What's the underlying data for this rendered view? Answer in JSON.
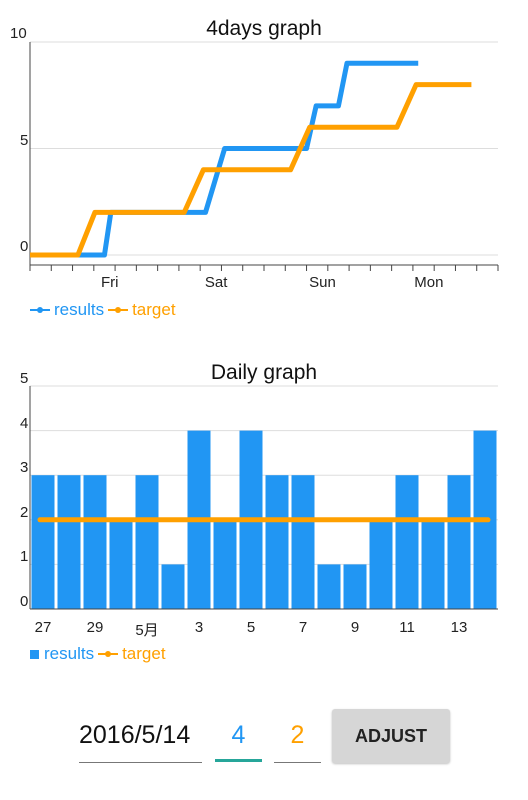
{
  "colors": {
    "results": "#2196f3",
    "target": "#ffa000",
    "grid": "#dddddd",
    "axis": "#444444"
  },
  "chart_data": [
    {
      "type": "line",
      "title": "4days graph",
      "ylim": [
        0,
        10
      ],
      "y_ticks": [
        "0",
        "5",
        "10"
      ],
      "x_ticks": [
        "Fri",
        "Sat",
        "Sun",
        "Mon"
      ],
      "xlim": [
        0,
        4.4
      ],
      "series": [
        {
          "name": "results",
          "color": "#2196f3",
          "points": [
            [
              0.0,
              0
            ],
            [
              0.7,
              0
            ],
            [
              0.76,
              2
            ],
            [
              1.65,
              2
            ],
            [
              1.83,
              5
            ],
            [
              2.6,
              5
            ],
            [
              2.69,
              7
            ],
            [
              2.9,
              7
            ],
            [
              2.98,
              9
            ],
            [
              3.65,
              9
            ]
          ]
        },
        {
          "name": "target",
          "color": "#ffa000",
          "points": [
            [
              0.0,
              0
            ],
            [
              0.45,
              0
            ],
            [
              0.61,
              2
            ],
            [
              1.45,
              2
            ],
            [
              1.63,
              4
            ],
            [
              2.45,
              4
            ],
            [
              2.63,
              6
            ],
            [
              3.45,
              6
            ],
            [
              3.63,
              8
            ],
            [
              4.15,
              8
            ]
          ]
        }
      ],
      "legend": "bottom-left",
      "grid": true
    },
    {
      "type": "bar",
      "title": "Daily graph",
      "ylim": [
        0,
        5
      ],
      "y_ticks": [
        "0",
        "1",
        "2",
        "3",
        "4",
        "5"
      ],
      "x_labels": [
        "27",
        "29",
        "5月",
        "3",
        "5",
        "7",
        "9",
        "11",
        "13"
      ],
      "series": [
        {
          "name": "results",
          "color": "#2196f3",
          "values": [
            3,
            3,
            3,
            2,
            3,
            1,
            4,
            2,
            4,
            3,
            3,
            1,
            1,
            2,
            3,
            2,
            3,
            4
          ]
        },
        {
          "name": "target",
          "color": "#ffa000",
          "type": "line",
          "values": [
            2,
            2,
            2,
            2,
            2,
            2,
            2,
            2,
            2,
            2,
            2,
            2,
            2,
            2,
            2,
            2,
            2,
            2
          ]
        }
      ],
      "legend": "bottom-left",
      "grid": true
    }
  ],
  "legend1": {
    "results": "results",
    "target": "target"
  },
  "legend2": {
    "results": "results",
    "target": "target"
  },
  "form": {
    "date_value": "2016/5/14",
    "results_value": "4",
    "target_value": "2",
    "adjust_label": "ADJUST"
  }
}
